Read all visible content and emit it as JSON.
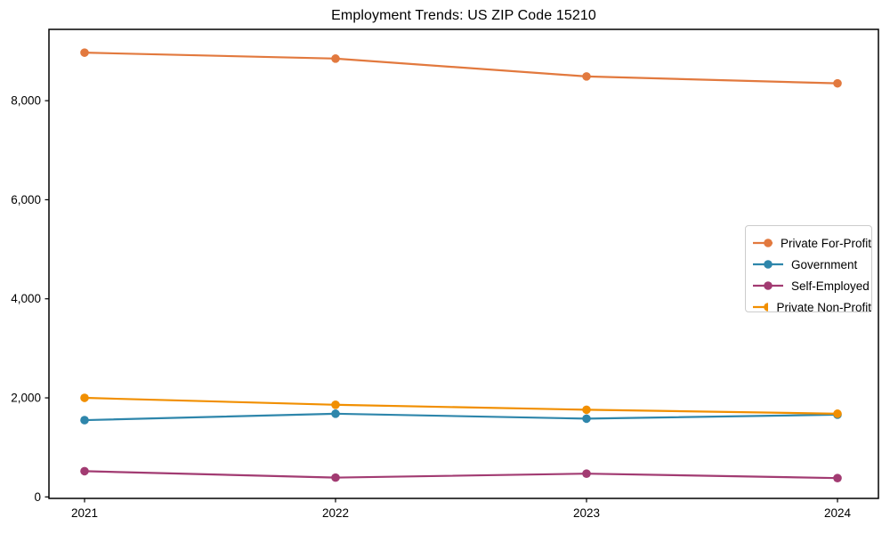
{
  "chart_data": {
    "type": "line",
    "title": "Employment Trends: US ZIP Code 15210",
    "xlabel": "",
    "ylabel": "",
    "categories": [
      "2021",
      "2022",
      "2023",
      "2024"
    ],
    "series": [
      {
        "name": "Private For-Profit",
        "color": "#E2793E",
        "values": [
          8970,
          8850,
          8490,
          8350
        ]
      },
      {
        "name": "Government",
        "color": "#2E86AB",
        "values": [
          1550,
          1680,
          1580,
          1660
        ]
      },
      {
        "name": "Self-Employed",
        "color": "#A23B72",
        "values": [
          520,
          390,
          470,
          380
        ]
      },
      {
        "name": "Private Non-Profit",
        "color": "#F18F01",
        "values": [
          2000,
          1860,
          1760,
          1680
        ]
      }
    ],
    "y_ticks": [
      {
        "value": 0,
        "label": "0"
      },
      {
        "value": 2000,
        "label": "2,000"
      },
      {
        "value": 4000,
        "label": "4,000"
      },
      {
        "value": 6000,
        "label": "6,000"
      },
      {
        "value": 8000,
        "label": "8,000"
      }
    ],
    "ylim": [
      -30,
      9440
    ],
    "grid": false,
    "legend_position": "middle-right",
    "marker": "circle",
    "axis_color": "#000000",
    "legend_border_color": "#cccccc"
  }
}
